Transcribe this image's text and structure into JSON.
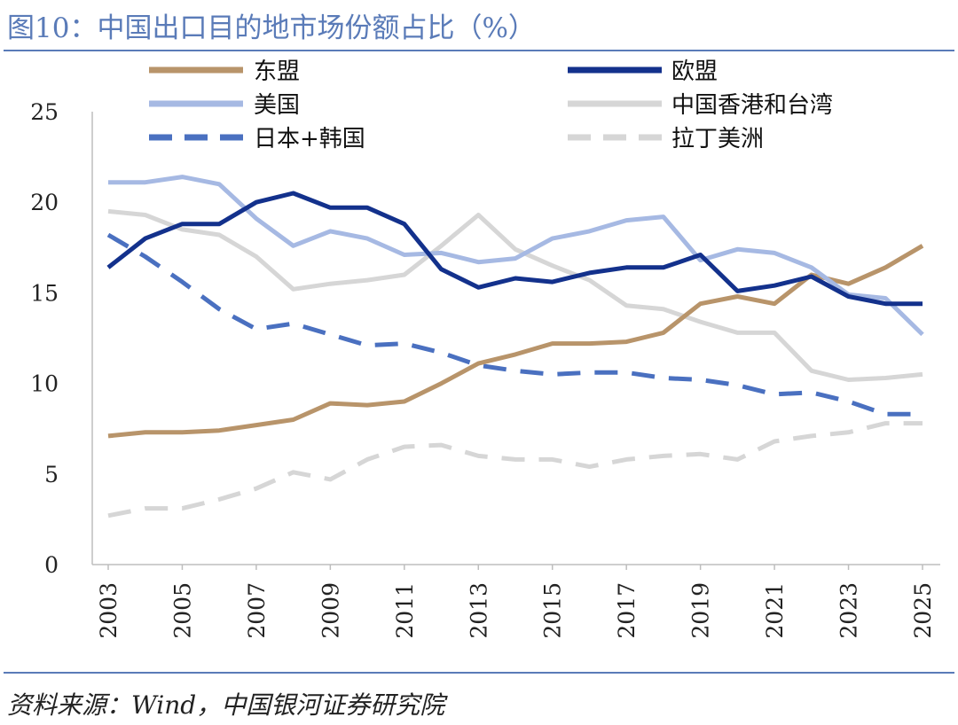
{
  "title": "图10：中国出口目的地市场份额占比（%）",
  "source": "资料来源：Wind，中国银河证券研究院",
  "chart_data": {
    "type": "line",
    "title": "中国出口目的地市场份额占比（%）",
    "xlabel": "",
    "ylabel": "",
    "ylim": [
      0,
      25
    ],
    "yticks": [
      "0",
      "5",
      "10",
      "15",
      "20",
      "25"
    ],
    "x": [
      2003,
      2004,
      2005,
      2006,
      2007,
      2008,
      2009,
      2010,
      2011,
      2012,
      2013,
      2014,
      2015,
      2016,
      2017,
      2018,
      2019,
      2020,
      2021,
      2022,
      2023,
      2024,
      2025
    ],
    "xtick_labels": [
      "2003",
      "2005",
      "2007",
      "2009",
      "2011",
      "2013",
      "2015",
      "2017",
      "2019",
      "2021",
      "2023",
      "2025"
    ],
    "legend_position": "top",
    "series": [
      {
        "name": "东盟",
        "color": "#b8946a",
        "dash": "solid",
        "values": [
          7.1,
          7.3,
          7.3,
          7.4,
          7.7,
          8.0,
          8.9,
          8.8,
          9.0,
          10.0,
          11.1,
          11.6,
          12.2,
          12.2,
          12.3,
          12.8,
          14.4,
          14.8,
          14.4,
          16.0,
          15.5,
          16.4,
          17.6
        ]
      },
      {
        "name": "欧盟",
        "color": "#13318c",
        "dash": "solid",
        "values": [
          16.4,
          18.0,
          18.8,
          18.8,
          20.0,
          20.5,
          19.7,
          19.7,
          18.8,
          16.3,
          15.3,
          15.8,
          15.6,
          16.1,
          16.4,
          16.4,
          17.1,
          15.1,
          15.4,
          15.9,
          14.8,
          14.4,
          14.4
        ]
      },
      {
        "name": "美国",
        "color": "#a6b9e3",
        "dash": "solid",
        "values": [
          21.1,
          21.1,
          21.4,
          21.0,
          19.1,
          17.6,
          18.4,
          18.0,
          17.1,
          17.2,
          16.7,
          16.9,
          18.0,
          18.4,
          19.0,
          19.2,
          16.8,
          17.4,
          17.2,
          16.4,
          14.9,
          14.7,
          12.7
        ]
      },
      {
        "name": "中国香港和台湾",
        "color": "#d6d6d6",
        "dash": "solid",
        "values": [
          19.5,
          19.3,
          18.5,
          18.2,
          17.0,
          15.2,
          15.5,
          15.7,
          16.0,
          17.6,
          19.3,
          17.4,
          16.5,
          15.7,
          14.3,
          14.1,
          13.4,
          12.8,
          12.8,
          10.7,
          10.2,
          10.3,
          10.5
        ]
      },
      {
        "name": "日本+韩国",
        "color": "#4a70c0",
        "dash": "dashed",
        "values": [
          18.2,
          17.0,
          15.6,
          14.1,
          13.0,
          13.3,
          12.7,
          12.1,
          12.2,
          11.7,
          11.0,
          10.7,
          10.5,
          10.6,
          10.6,
          10.3,
          10.2,
          9.9,
          9.4,
          9.5,
          9.0,
          8.3,
          8.3
        ]
      },
      {
        "name": "拉丁美洲",
        "color": "#d6d6d6",
        "dash": "dashed",
        "values": [
          2.7,
          3.1,
          3.1,
          3.6,
          4.2,
          5.1,
          4.7,
          5.8,
          6.5,
          6.6,
          6.0,
          5.8,
          5.8,
          5.4,
          5.8,
          6.0,
          6.1,
          5.8,
          6.8,
          7.1,
          7.3,
          7.8,
          7.8
        ]
      }
    ]
  }
}
